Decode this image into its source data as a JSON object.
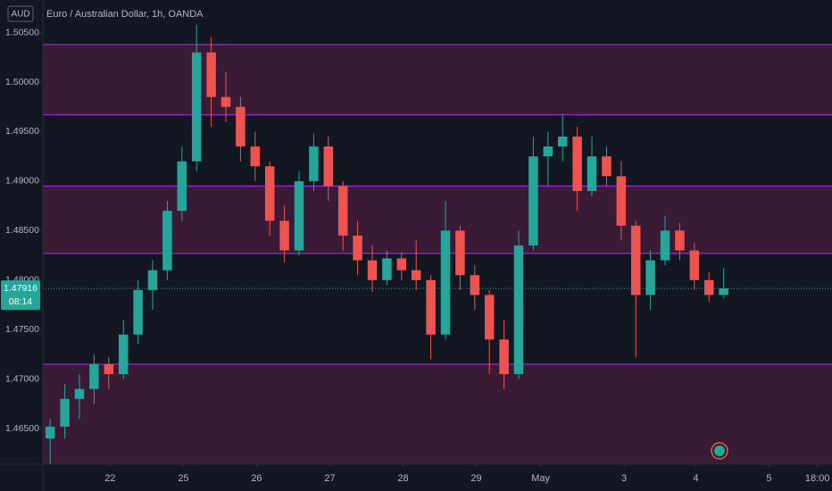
{
  "chart_data": {
    "type": "candlestick",
    "title": "Euro / Australian Dollar, 1h, OANDA",
    "currency": "AUD",
    "countdown": "08:14",
    "up_color": "#26a69a",
    "down_color": "#ef5350",
    "level_color": "#9c27d0",
    "zone_color": "#5a1f45",
    "open": [
      1.464,
      1.4652,
      1.468,
      1.469,
      1.4715,
      1.4705,
      1.4745,
      1.479,
      1.481,
      1.487,
      1.492,
      1.503,
      1.4985,
      1.4975,
      1.4935,
      1.4915,
      1.486,
      1.483,
      1.49,
      1.4935,
      1.4895,
      1.4845,
      1.482,
      1.48,
      1.4822,
      1.481,
      1.48,
      1.4745,
      1.485,
      1.4805,
      1.4785,
      1.474,
      1.4705,
      1.4835,
      1.4925,
      1.4935,
      1.4945,
      1.489,
      1.4925,
      1.4905,
      1.4855,
      1.4785,
      1.482,
      1.485,
      1.483,
      1.48,
      1.4785
    ],
    "high": [
      1.466,
      1.4695,
      1.4705,
      1.4725,
      1.4722,
      1.476,
      1.48,
      1.482,
      1.488,
      1.4935,
      1.5058,
      1.5045,
      1.501,
      1.4985,
      1.495,
      1.492,
      1.4875,
      1.491,
      1.4948,
      1.4945,
      1.49,
      1.486,
      1.4835,
      1.483,
      1.4828,
      1.484,
      1.4805,
      1.488,
      1.4855,
      1.4815,
      1.479,
      1.476,
      1.485,
      1.4945,
      1.495,
      1.4968,
      1.4955,
      1.4945,
      1.4935,
      1.492,
      1.486,
      1.483,
      1.4865,
      1.4858,
      1.4838,
      1.4808,
      1.4812
    ],
    "low": [
      1.4614,
      1.464,
      1.466,
      1.4675,
      1.469,
      1.47,
      1.4735,
      1.477,
      1.48,
      1.486,
      1.491,
      1.4955,
      1.496,
      1.492,
      1.49,
      1.4845,
      1.4818,
      1.4825,
      1.489,
      1.488,
      1.483,
      1.4805,
      1.4788,
      1.4795,
      1.48,
      1.479,
      1.472,
      1.474,
      1.479,
      1.477,
      1.4705,
      1.469,
      1.47,
      1.483,
      1.4895,
      1.492,
      1.487,
      1.4885,
      1.4895,
      1.484,
      1.4722,
      1.477,
      1.4815,
      1.482,
      1.479,
      1.4778,
      1.4782
    ],
    "close": [
      1.4652,
      1.468,
      1.469,
      1.4715,
      1.4705,
      1.4745,
      1.479,
      1.481,
      1.487,
      1.492,
      1.503,
      1.4985,
      1.4975,
      1.4935,
      1.4915,
      1.486,
      1.483,
      1.49,
      1.4935,
      1.4895,
      1.4845,
      1.482,
      1.48,
      1.4822,
      1.481,
      1.48,
      1.4745,
      1.485,
      1.4805,
      1.4785,
      1.474,
      1.4705,
      1.4835,
      1.4925,
      1.4935,
      1.4945,
      1.489,
      1.4925,
      1.4905,
      1.4855,
      1.4785,
      1.482,
      1.485,
      1.483,
      1.48,
      1.4785,
      1.47916
    ],
    "levels": [
      1.5038,
      1.4967,
      1.4895,
      1.4827,
      1.4715
    ],
    "zones": [
      [
        1.4967,
        1.5038
      ],
      [
        1.4827,
        1.4895
      ],
      [
        1.4614,
        1.4715
      ]
    ],
    "ylim": [
      1.4614,
      1.5083
    ],
    "yticks": [
      {
        "value": 1.465,
        "label": "1.46500"
      },
      {
        "value": 1.47,
        "label": "1.47000"
      },
      {
        "value": 1.475,
        "label": "1.47500"
      },
      {
        "value": 1.48,
        "label": "1.48000"
      },
      {
        "value": 1.485,
        "label": "1.48500"
      },
      {
        "value": 1.49,
        "label": "1.49000"
      },
      {
        "value": 1.495,
        "label": "1.49500"
      },
      {
        "value": 1.5,
        "label": "1.50000"
      },
      {
        "value": 1.505,
        "label": "1.50500"
      }
    ],
    "xlim": [
      0,
      53.9
    ],
    "xticks": [
      {
        "value": 4.6,
        "label": "22"
      },
      {
        "value": 9.6,
        "label": "25"
      },
      {
        "value": 14.6,
        "label": "26"
      },
      {
        "value": 19.6,
        "label": "27"
      },
      {
        "value": 24.6,
        "label": "28"
      },
      {
        "value": 29.6,
        "label": "29"
      },
      {
        "value": 34.0,
        "label": "May"
      },
      {
        "value": 39.7,
        "label": "3"
      },
      {
        "value": 44.6,
        "label": "4"
      },
      {
        "value": 49.6,
        "label": "5"
      },
      {
        "value": 52.9,
        "label": "18:00"
      }
    ]
  }
}
